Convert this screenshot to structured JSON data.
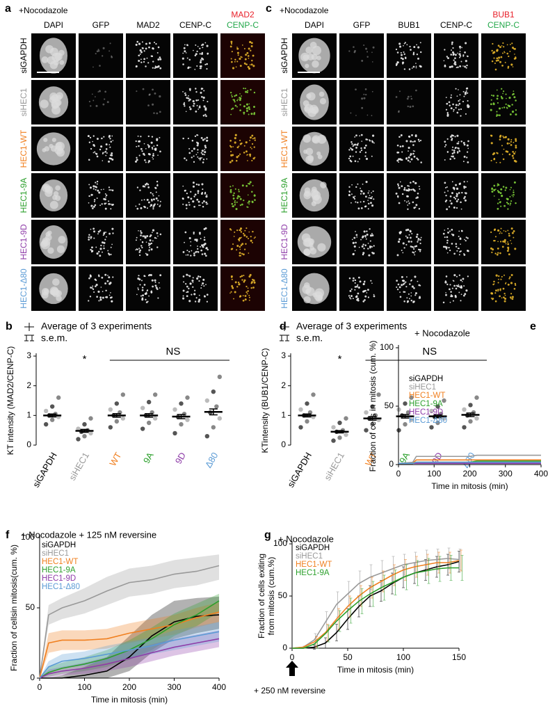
{
  "image_panels": [
    {
      "panel": "a",
      "title": "+Nocodazole",
      "columns": [
        "DAPI",
        "GFP",
        "MAD2",
        "CENP-C"
      ],
      "merge": [
        {
          "text": "MAD2",
          "color": "#e8202a"
        },
        {
          "text": "CENP-C",
          "color": "#22a84a"
        }
      ],
      "rows": [
        {
          "text": "siGAPDH",
          "color": "#000000"
        },
        {
          "text": "siHEC1",
          "color": "#999999"
        },
        {
          "text": "HEC1-WT",
          "color": "#f07f1f"
        },
        {
          "text": "HEC1-9A",
          "color": "#2ca02c"
        },
        {
          "text": "HEC1-9D",
          "color": "#8e3ca8"
        },
        {
          "text": "HEC1-Δ80",
          "color": "#5b9bd5"
        }
      ]
    },
    {
      "panel": "c",
      "title": "+Nocodazole",
      "columns": [
        "DAPI",
        "GFP",
        "BUB1",
        "CENP-C"
      ],
      "merge": [
        {
          "text": "BUB1",
          "color": "#e8202a"
        },
        {
          "text": "CENP-C",
          "color": "#22a84a"
        }
      ],
      "rows": [
        {
          "text": "siGAPDH",
          "color": "#000000"
        },
        {
          "text": "siHEC1",
          "color": "#999999"
        },
        {
          "text": "HEC1-WT",
          "color": "#f07f1f"
        },
        {
          "text": "HEC1-9A",
          "color": "#2ca02c"
        },
        {
          "text": "HEC1-9D",
          "color": "#8e3ca8"
        },
        {
          "text": "HEC1-Δ80",
          "color": "#5b9bd5"
        }
      ]
    }
  ],
  "chart_data": [
    {
      "panel": "b",
      "type": "strip",
      "legend": [
        "Average of 3 experiments",
        "s.e.m."
      ],
      "annotations": [
        "*",
        "NS"
      ],
      "ylabel": "KT intensity (MAD2/CENP-C)",
      "categories": [
        "siGAPDH",
        "siHEC1",
        "WT",
        "9A",
        "9D",
        "Δ80"
      ],
      "category_colors": [
        "#000000",
        "#999999",
        "#f07f1f",
        "#2ca02c",
        "#8e3ca8",
        "#5b9bd5"
      ],
      "points": [
        [
          0.7,
          0.85,
          0.95,
          1.0,
          1.05,
          1.15,
          1.3,
          1.6
        ],
        [
          0.2,
          0.3,
          0.4,
          0.45,
          0.5,
          0.55,
          0.7,
          0.9
        ],
        [
          0.6,
          0.8,
          0.9,
          1.0,
          1.1,
          1.2,
          1.4,
          1.7
        ],
        [
          0.55,
          0.75,
          0.9,
          1.0,
          1.1,
          1.25,
          1.45,
          1.7
        ],
        [
          0.4,
          0.7,
          0.85,
          0.95,
          1.05,
          1.2,
          1.4,
          1.6
        ],
        [
          0.3,
          0.6,
          0.9,
          1.1,
          1.3,
          1.5,
          1.8,
          2.3
        ]
      ],
      "means": [
        1.0,
        0.48,
        1.0,
        1.0,
        0.96,
        1.12
      ],
      "sems": [
        0.05,
        0.05,
        0.06,
        0.06,
        0.07,
        0.1
      ],
      "ylim": [
        0,
        3
      ],
      "yticks": [
        0,
        1,
        2,
        3
      ]
    },
    {
      "panel": "d",
      "type": "strip",
      "legend": [
        "Average of 3 experiments",
        "s.e.m."
      ],
      "annotations": [
        "*",
        "NS"
      ],
      "ylabel": "KTintensity (BUB1/CENP-C)",
      "categories": [
        "siGAPDH",
        "siHEC1",
        "WT",
        "9A",
        "9D",
        "Δ80"
      ],
      "category_colors": [
        "#000000",
        "#999999",
        "#f07f1f",
        "#2ca02c",
        "#8e3ca8",
        "#5b9bd5"
      ],
      "points": [
        [
          0.6,
          0.8,
          0.95,
          1.0,
          1.1,
          1.2,
          1.4,
          1.7
        ],
        [
          0.15,
          0.25,
          0.35,
          0.45,
          0.5,
          0.6,
          0.75,
          0.9
        ],
        [
          0.5,
          0.7,
          0.85,
          0.9,
          1.0,
          1.1,
          1.3,
          1.7
        ],
        [
          0.5,
          0.7,
          0.85,
          1.0,
          1.1,
          1.2,
          1.4,
          1.6
        ],
        [
          0.6,
          0.75,
          0.9,
          0.95,
          1.05,
          1.15,
          1.3,
          1.5
        ],
        [
          0.6,
          0.8,
          0.9,
          1.0,
          1.1,
          1.2,
          1.35,
          1.6
        ]
      ],
      "means": [
        1.0,
        0.45,
        0.9,
        0.97,
        0.97,
        1.02
      ],
      "sems": [
        0.05,
        0.04,
        0.06,
        0.06,
        0.05,
        0.06
      ],
      "ylim": [
        0,
        3
      ],
      "yticks": [
        0,
        1,
        2,
        3
      ]
    },
    {
      "panel": "e",
      "type": "line",
      "title": "+ Nocodazole",
      "ylabel": "Fraction of cells in mitosis (cum. %)",
      "xlabel": "Time in mitosis (min)",
      "x": [
        0,
        40,
        50,
        200,
        220,
        400
      ],
      "xlim": [
        0,
        400
      ],
      "xticks": [
        0,
        100,
        200,
        300,
        400
      ],
      "ylim": [
        0,
        100
      ],
      "yticks": [
        0,
        50,
        100
      ],
      "series": [
        {
          "name": "siGAPDH",
          "color": "#000000",
          "values": [
            1,
            1,
            2,
            2,
            2,
            2
          ]
        },
        {
          "name": "siHEC1",
          "color": "#999999",
          "values": [
            1,
            2,
            7,
            7,
            8,
            8
          ]
        },
        {
          "name": "HEC1-WT",
          "color": "#f07f1f",
          "values": [
            1,
            1,
            4,
            4,
            4,
            4
          ]
        },
        {
          "name": "HEC1-9A",
          "color": "#2ca02c",
          "values": [
            1,
            1,
            2,
            2,
            3,
            3
          ]
        },
        {
          "name": "HEC1-9D",
          "color": "#8e3ca8",
          "values": [
            1,
            1,
            1,
            1,
            1,
            1
          ]
        },
        {
          "name": "HEC1-Δ80",
          "color": "#5b9bd5",
          "values": [
            1,
            1,
            2,
            2,
            2,
            2
          ]
        }
      ]
    },
    {
      "panel": "f",
      "type": "line",
      "title": "+ Nocodazole + 125 nM reversine",
      "ylabel": "Fraction of cellsin mitosis(cum. %)",
      "xlabel": "Time in mitosis (min)",
      "x": [
        0,
        20,
        50,
        100,
        150,
        200,
        250,
        300,
        350,
        400
      ],
      "xlim": [
        0,
        400
      ],
      "xticks": [
        0,
        100,
        200,
        300,
        400
      ],
      "ylim": [
        0,
        100
      ],
      "yticks": [
        0,
        50,
        100
      ],
      "series": [
        {
          "name": "siGAPDH",
          "color": "#000000",
          "values": [
            0,
            0,
            0,
            2,
            5,
            15,
            30,
            40,
            44,
            45
          ],
          "lower": [
            0,
            0,
            0,
            0,
            0,
            5,
            18,
            28,
            32,
            35
          ],
          "upper": [
            0,
            0,
            2,
            8,
            15,
            30,
            45,
            55,
            57,
            58
          ]
        },
        {
          "name": "siHEC1",
          "color": "#999999",
          "values": [
            0,
            45,
            50,
            55,
            62,
            68,
            70,
            74,
            76,
            80
          ],
          "lower": [
            0,
            38,
            42,
            46,
            52,
            58,
            60,
            64,
            66,
            70
          ],
          "upper": [
            0,
            52,
            57,
            64,
            72,
            78,
            80,
            84,
            86,
            88
          ]
        },
        {
          "name": "HEC1-WT",
          "color": "#f07f1f",
          "values": [
            0,
            25,
            27,
            27,
            28,
            32,
            35,
            38,
            43,
            47
          ],
          "lower": [
            0,
            18,
            20,
            20,
            21,
            25,
            28,
            31,
            36,
            40
          ],
          "upper": [
            0,
            32,
            34,
            34,
            35,
            39,
            42,
            45,
            50,
            54
          ]
        },
        {
          "name": "HEC1-9A",
          "color": "#2ca02c",
          "values": [
            0,
            4,
            7,
            10,
            14,
            20,
            28,
            38,
            45,
            55
          ],
          "lower": [
            0,
            1,
            3,
            5,
            8,
            13,
            20,
            30,
            37,
            47
          ],
          "upper": [
            0,
            8,
            11,
            15,
            20,
            27,
            36,
            46,
            53,
            60
          ]
        },
        {
          "name": "HEC1-9D",
          "color": "#8e3ca8",
          "values": [
            0,
            3,
            5,
            7,
            10,
            14,
            18,
            22,
            25,
            28
          ],
          "lower": [
            0,
            0,
            2,
            3,
            5,
            8,
            12,
            16,
            19,
            22
          ],
          "upper": [
            0,
            6,
            8,
            11,
            15,
            20,
            24,
            28,
            31,
            34
          ]
        },
        {
          "name": "HEC1-Δ80",
          "color": "#5b9bd5",
          "values": [
            0,
            8,
            12,
            14,
            17,
            20,
            23,
            27,
            30,
            33
          ],
          "lower": [
            0,
            4,
            7,
            9,
            11,
            14,
            17,
            20,
            23,
            26
          ],
          "upper": [
            0,
            12,
            17,
            19,
            23,
            26,
            29,
            34,
            37,
            40
          ]
        }
      ]
    },
    {
      "panel": "g",
      "type": "line",
      "title": "+ Nocodazole",
      "annotations": [
        "+ 250 nM reversine"
      ],
      "ylabel": [
        "Fraction of cells exiting",
        "from mitosis (cum.%)"
      ],
      "xlabel": "Time in mitosis (min)",
      "x": [
        0,
        10,
        20,
        30,
        40,
        50,
        60,
        70,
        80,
        90,
        100,
        110,
        120,
        130,
        140,
        150
      ],
      "xlim": [
        0,
        150
      ],
      "xticks": [
        0,
        50,
        100,
        150
      ],
      "ylim": [
        0,
        100
      ],
      "yticks": [
        0,
        50,
        100
      ],
      "series": [
        {
          "name": "siGAPDH",
          "color": "#000000",
          "values": [
            0,
            0,
            1,
            5,
            15,
            28,
            40,
            50,
            55,
            62,
            68,
            72,
            75,
            78,
            80,
            83
          ],
          "errors": [
            0,
            0,
            2,
            5,
            8,
            10,
            10,
            10,
            10,
            10,
            10,
            10,
            10,
            10,
            10,
            10
          ]
        },
        {
          "name": "siHEC1",
          "color": "#999999",
          "values": [
            0,
            1,
            8,
            25,
            42,
            52,
            62,
            68,
            72,
            76,
            80,
            82,
            84,
            85,
            86,
            85
          ],
          "errors": [
            0,
            1,
            6,
            10,
            12,
            12,
            12,
            12,
            12,
            12,
            10,
            10,
            10,
            10,
            10,
            10
          ]
        },
        {
          "name": "HEC1-WT",
          "color": "#f07f1f",
          "values": [
            0,
            1,
            6,
            15,
            28,
            40,
            50,
            58,
            64,
            70,
            75,
            78,
            80,
            82,
            82,
            84
          ],
          "errors": [
            0,
            1,
            5,
            8,
            10,
            10,
            10,
            10,
            10,
            10,
            10,
            10,
            10,
            10,
            10,
            10
          ]
        },
        {
          "name": "HEC1-9A",
          "color": "#2ca02c",
          "values": [
            0,
            0,
            4,
            14,
            26,
            36,
            45,
            52,
            58,
            63,
            68,
            72,
            74,
            76,
            77,
            77
          ],
          "errors": [
            0,
            0,
            4,
            8,
            10,
            12,
            12,
            12,
            12,
            12,
            12,
            12,
            12,
            12,
            12,
            12
          ]
        }
      ]
    }
  ]
}
